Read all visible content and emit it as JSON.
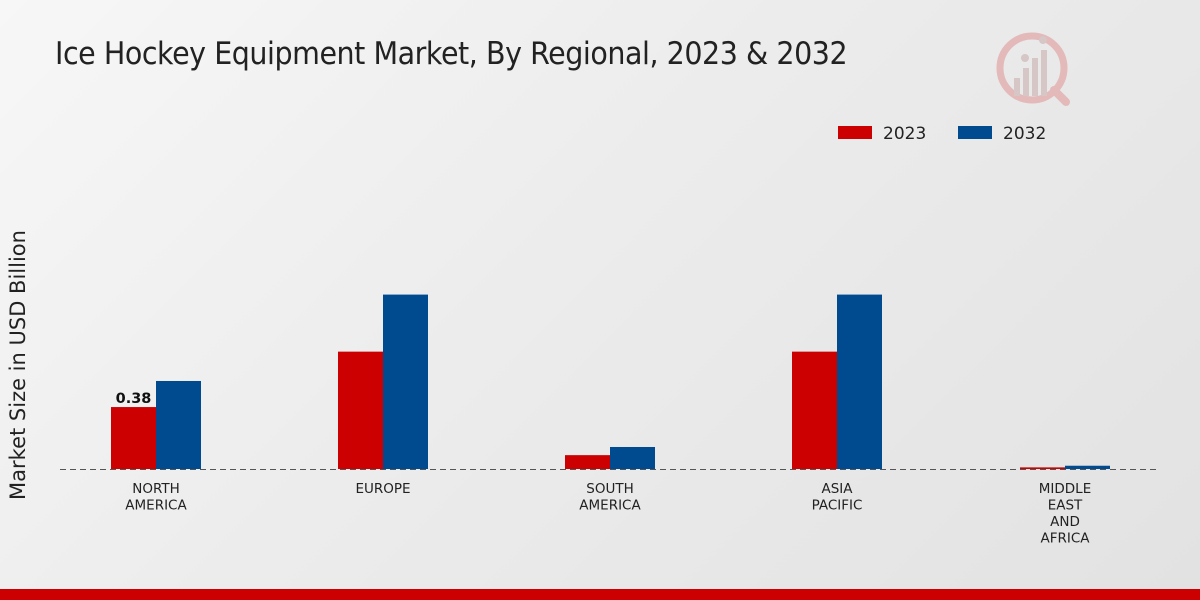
{
  "chart_data": {
    "type": "bar",
    "title": "Ice Hockey Equipment Market, By Regional, 2023 & 2032",
    "xlabel": "",
    "ylabel": "Market Size in USD Billion",
    "categories": [
      [
        "NORTH",
        "AMERICA"
      ],
      [
        "EUROPE"
      ],
      [
        "SOUTH",
        "AMERICA"
      ],
      [
        "ASIA",
        "PACIFIC"
      ],
      [
        "MIDDLE",
        "EAST",
        "AND",
        "AFRICA"
      ]
    ],
    "series": [
      {
        "name": "2023",
        "color": "#cc0000",
        "values": [
          0.38,
          0.72,
          0.085,
          0.72,
          0.01
        ]
      },
      {
        "name": "2032",
        "color": "#004a8f",
        "values": [
          0.54,
          1.07,
          0.135,
          1.07,
          0.02
        ]
      }
    ],
    "data_labels": [
      {
        "series": 0,
        "category": 0,
        "text": "0.38"
      }
    ],
    "ylim": [
      0,
      1.5
    ],
    "grid": false,
    "legend_position": "top-right",
    "baseline_style": "dashed"
  },
  "colors": {
    "accent": "#cc0000",
    "secondary": "#004a8f"
  }
}
